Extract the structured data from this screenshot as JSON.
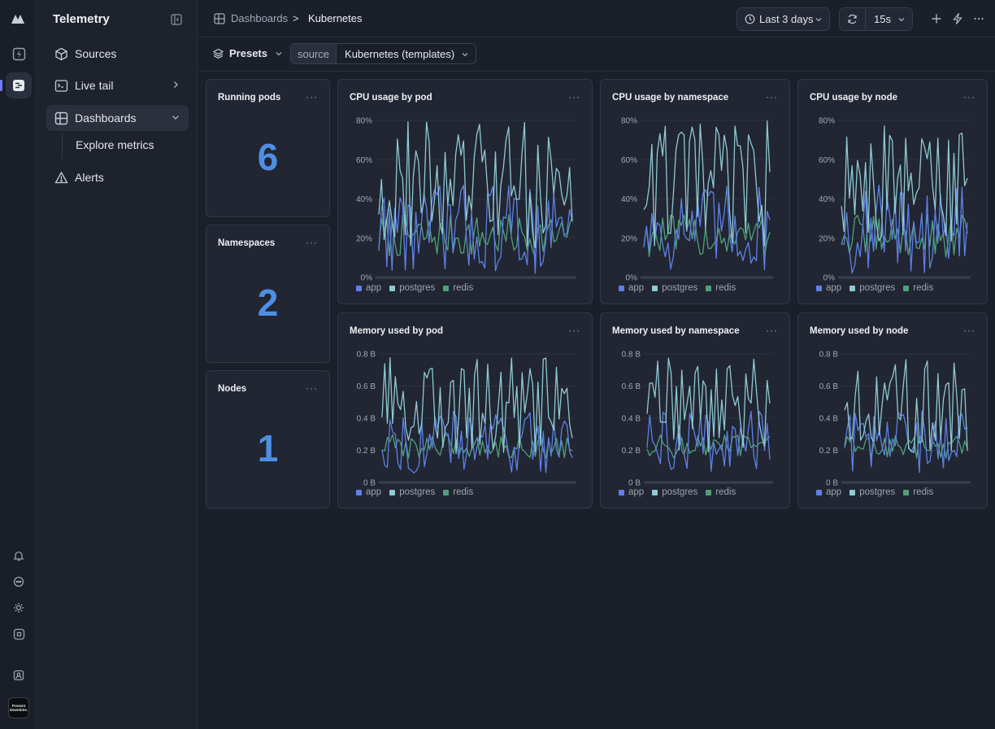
{
  "app": {
    "title": "Telemetry",
    "avatar_text": "Present downtime."
  },
  "colors": {
    "accent": "#6e7bff",
    "stat": "#4f8fe3",
    "app": "#5f80e6",
    "postgres": "#8ec9d4",
    "redis": "#4fa07a"
  },
  "nav": {
    "sources": "Sources",
    "live_tail": "Live tail",
    "dashboards": "Dashboards",
    "explore_metrics": "Explore metrics",
    "alerts": "Alerts"
  },
  "breadcrumb": {
    "parent": "Dashboards",
    "separator": ">",
    "current": "Kubernetes"
  },
  "toolbar": {
    "time_range": "Last 3 days",
    "refresh_interval": "15s"
  },
  "filters": {
    "presets_label": "Presets",
    "source_key": "source",
    "source_value": "Kubernetes (templates)"
  },
  "stats": [
    {
      "title": "Running pods",
      "value": "6"
    },
    {
      "title": "Namespaces",
      "value": "2"
    },
    {
      "title": "Nodes",
      "value": "1"
    }
  ],
  "chart_data": [
    {
      "type": "line",
      "title": "CPU usage by pod",
      "y_ticks": [
        "80%",
        "60%",
        "40%",
        "20%",
        "0%"
      ],
      "ylim": [
        0,
        80
      ],
      "series": [
        {
          "name": "app",
          "range": [
            2,
            48
          ]
        },
        {
          "name": "postgres",
          "range": [
            15,
            80
          ]
        },
        {
          "name": "redis",
          "range": [
            10,
            32
          ]
        }
      ],
      "grid": true
    },
    {
      "type": "line",
      "title": "CPU usage by namespace",
      "y_ticks": [
        "80%",
        "60%",
        "40%",
        "20%",
        "0%"
      ],
      "ylim": [
        0,
        80
      ],
      "series": [
        {
          "name": "app",
          "range": [
            2,
            48
          ]
        },
        {
          "name": "postgres",
          "range": [
            15,
            80
          ]
        },
        {
          "name": "redis",
          "range": [
            10,
            32
          ]
        }
      ],
      "grid": true
    },
    {
      "type": "line",
      "title": "CPU usage by node",
      "y_ticks": [
        "80%",
        "60%",
        "40%",
        "20%",
        "0%"
      ],
      "ylim": [
        0,
        80
      ],
      "series": [
        {
          "name": "app",
          "range": [
            2,
            48
          ]
        },
        {
          "name": "postgres",
          "range": [
            15,
            78
          ]
        },
        {
          "name": "redis",
          "range": [
            10,
            32
          ]
        }
      ],
      "grid": true
    },
    {
      "type": "line",
      "title": "Memory used by pod",
      "y_ticks": [
        "0.8 B",
        "0.6 B",
        "0.4 B",
        "0.2 B",
        "0 B"
      ],
      "ylim": [
        0,
        0.8
      ],
      "series": [
        {
          "name": "app",
          "range": [
            0.06,
            0.45
          ]
        },
        {
          "name": "postgres",
          "range": [
            0.18,
            0.78
          ]
        },
        {
          "name": "redis",
          "range": [
            0.15,
            0.3
          ]
        }
      ],
      "grid": true
    },
    {
      "type": "line",
      "title": "Memory used by namespace",
      "y_ticks": [
        "0.8 B",
        "0.6 B",
        "0.4 B",
        "0.2 B",
        "0 B"
      ],
      "ylim": [
        0,
        0.8
      ],
      "series": [
        {
          "name": "app",
          "range": [
            0.06,
            0.45
          ]
        },
        {
          "name": "postgres",
          "range": [
            0.18,
            0.78
          ]
        },
        {
          "name": "redis",
          "range": [
            0.15,
            0.3
          ]
        }
      ],
      "grid": true
    },
    {
      "type": "line",
      "title": "Memory used by node",
      "y_ticks": [
        "0.8 B",
        "0.6 B",
        "0.4 B",
        "0.2 B",
        "0 B"
      ],
      "ylim": [
        0,
        0.8
      ],
      "series": [
        {
          "name": "app",
          "range": [
            0.06,
            0.45
          ]
        },
        {
          "name": "postgres",
          "range": [
            0.18,
            0.78
          ]
        },
        {
          "name": "redis",
          "range": [
            0.15,
            0.3
          ]
        }
      ],
      "grid": true
    }
  ]
}
